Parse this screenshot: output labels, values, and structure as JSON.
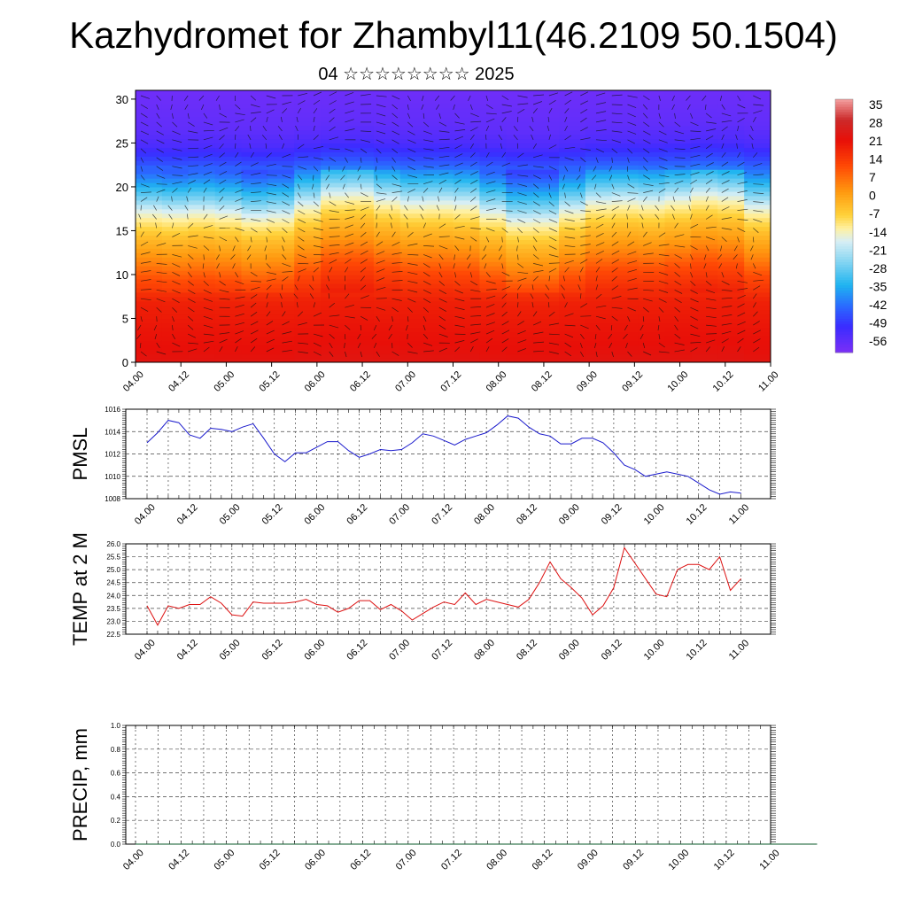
{
  "title": "Kazhydromet for Zhambyl11(46.2109 50.1504)",
  "subtitle": "04 ☆☆☆☆☆☆☆☆ 2025",
  "colors": {
    "pmsl_line": "#1a1acc",
    "temp_line": "#dd1111",
    "precip_line": "#0a5a2a",
    "axis": "#000000",
    "grid": "#444444"
  },
  "chart_data": [
    {
      "type": "heatmap",
      "description_free": true,
      "x_tick_labels": [
        "04.00",
        "04.12",
        "05.00",
        "05.12",
        "06.00",
        "06.12",
        "07.00",
        "07.12",
        "08.00",
        "08.12",
        "09.00",
        "09.12",
        "10.00",
        "10.12",
        "11.00"
      ],
      "y_tick_labels": [
        "0",
        "5",
        "10",
        "15",
        "20",
        "25",
        "30"
      ],
      "ylim": [
        0,
        31
      ],
      "colorbar_labels": [
        "35",
        "28",
        "21",
        "14",
        "7",
        "0",
        "-7",
        "-14",
        "-21",
        "-28",
        "-35",
        "-42",
        "-49",
        "-56"
      ],
      "colorbar_range": [
        -60,
        38
      ],
      "color_scale": [
        {
          "v": -60,
          "c": "#7b2ff7"
        },
        {
          "v": -50,
          "c": "#3a2cff"
        },
        {
          "v": -42,
          "c": "#2a6bff"
        },
        {
          "v": -34,
          "c": "#1fb4f0"
        },
        {
          "v": -24,
          "c": "#8fd8f2"
        },
        {
          "v": -17,
          "c": "#d8eff5"
        },
        {
          "v": -12,
          "c": "#fff0a0"
        },
        {
          "v": -7,
          "c": "#ffd23a"
        },
        {
          "v": 2,
          "c": "#ff9a10"
        },
        {
          "v": 12,
          "c": "#ff4a05"
        },
        {
          "v": 22,
          "c": "#e80f08"
        },
        {
          "v": 30,
          "c": "#cc2a2a"
        },
        {
          "v": 38,
          "c": "#f3a0a0"
        }
      ],
      "profile": [
        {
          "y": 0,
          "t": 24
        },
        {
          "y": 2,
          "t": 22
        },
        {
          "y": 4,
          "t": 21
        },
        {
          "y": 7,
          "t": 19
        },
        {
          "y": 10,
          "t": 12
        },
        {
          "y": 12,
          "t": 5
        },
        {
          "y": 15,
          "t": -4
        },
        {
          "y": 17,
          "t": -12
        },
        {
          "y": 18,
          "t": -17
        },
        {
          "y": 19,
          "t": -24
        },
        {
          "y": 21,
          "t": -36
        },
        {
          "y": 23,
          "t": -46
        },
        {
          "y": 25,
          "t": -53
        },
        {
          "y": 27,
          "t": -56
        },
        {
          "y": 31,
          "t": -58
        }
      ]
    },
    {
      "type": "line",
      "ylabel": "PMSL",
      "x_tick_labels": [
        "04.00",
        "04.12",
        "05.00",
        "05.12",
        "06.00",
        "06.12",
        "07.00",
        "07.12",
        "08.00",
        "08.12",
        "09.00",
        "09.12",
        "10.00",
        "10.12",
        "11.00"
      ],
      "y_tick_labels": [
        "1008",
        "1010",
        "1012",
        "1014",
        "1016"
      ],
      "ylim": [
        1008,
        1016
      ],
      "series": [
        {
          "values": [
            1013.0,
            1013.9,
            1015.0,
            1014.8,
            1013.7,
            1013.4,
            1014.3,
            1014.2,
            1014.0,
            1014.4,
            1014.7,
            1013.4,
            1012.0,
            1011.3,
            1012.1,
            1012.1,
            1012.6,
            1013.1,
            1013.1,
            1012.3,
            1011.7,
            1012.0,
            1012.4,
            1012.3,
            1012.4,
            1013.0,
            1013.8,
            1013.6,
            1013.2,
            1012.8,
            1013.3,
            1013.6,
            1013.9,
            1014.6,
            1015.4,
            1015.2,
            1014.4,
            1013.8,
            1013.6,
            1012.9,
            1012.9,
            1013.4,
            1013.4,
            1013.0,
            1012.1,
            1011.0,
            1010.6,
            1010.0,
            1010.2,
            1010.4,
            1010.2,
            1010.0,
            1009.4,
            1008.8,
            1008.4,
            1008.6,
            1008.5
          ]
        }
      ]
    },
    {
      "type": "line",
      "ylabel": "TEMP at 2 M",
      "x_tick_labels": [
        "04.00",
        "04.12",
        "05.00",
        "05.12",
        "06.00",
        "06.12",
        "07.00",
        "07.12",
        "08.00",
        "08.12",
        "09.00",
        "09.12",
        "10.00",
        "10.12",
        "11.00"
      ],
      "y_tick_labels": [
        "22.5",
        "23.0",
        "23.5",
        "24.0",
        "24.5",
        "25.0",
        "25.5",
        "26.0"
      ],
      "ylim": [
        22.5,
        26.0
      ],
      "series": [
        {
          "values": [
            23.6,
            22.85,
            23.6,
            23.5,
            23.65,
            23.65,
            23.95,
            23.7,
            23.25,
            23.2,
            23.75,
            23.7,
            23.7,
            23.7,
            23.75,
            23.85,
            23.65,
            23.6,
            23.35,
            23.5,
            23.8,
            23.8,
            23.45,
            23.65,
            23.4,
            23.05,
            23.3,
            23.55,
            23.75,
            23.65,
            24.1,
            23.65,
            23.85,
            23.75,
            23.65,
            23.55,
            23.85,
            24.5,
            25.3,
            24.65,
            24.3,
            23.9,
            23.25,
            23.6,
            24.3,
            25.85,
            25.25,
            24.65,
            24.05,
            23.95,
            25.0,
            25.2,
            25.2,
            25.0,
            25.5,
            24.2,
            24.65
          ]
        }
      ]
    },
    {
      "type": "line",
      "ylabel": "PRECIP, mm",
      "x_tick_labels": [
        "04.00",
        "04.12",
        "05.00",
        "05.12",
        "06.00",
        "06.12",
        "07.00",
        "07.12",
        "08.00",
        "08.12",
        "09.00",
        "09.12",
        "10.00",
        "10.12",
        "11.00"
      ],
      "y_tick_labels": [
        "0.0",
        "0.2",
        "0.4",
        "0.6",
        "0.8",
        "1.0"
      ],
      "ylim": [
        0.0,
        1.0
      ],
      "series": [
        {
          "values": [
            0,
            0,
            0,
            0,
            0,
            0,
            0,
            0,
            0,
            0,
            0,
            0,
            0,
            0,
            0,
            0,
            0,
            0,
            0,
            0,
            0,
            0,
            0,
            0,
            0,
            0,
            0,
            0,
            0,
            0,
            0,
            0,
            0,
            0,
            0,
            0,
            0,
            0,
            0,
            0,
            0,
            0,
            0,
            0,
            0,
            0,
            0,
            0,
            0,
            0,
            0,
            0,
            0,
            0,
            0,
            0,
            0,
            0,
            0,
            0,
            0
          ]
        }
      ]
    }
  ]
}
